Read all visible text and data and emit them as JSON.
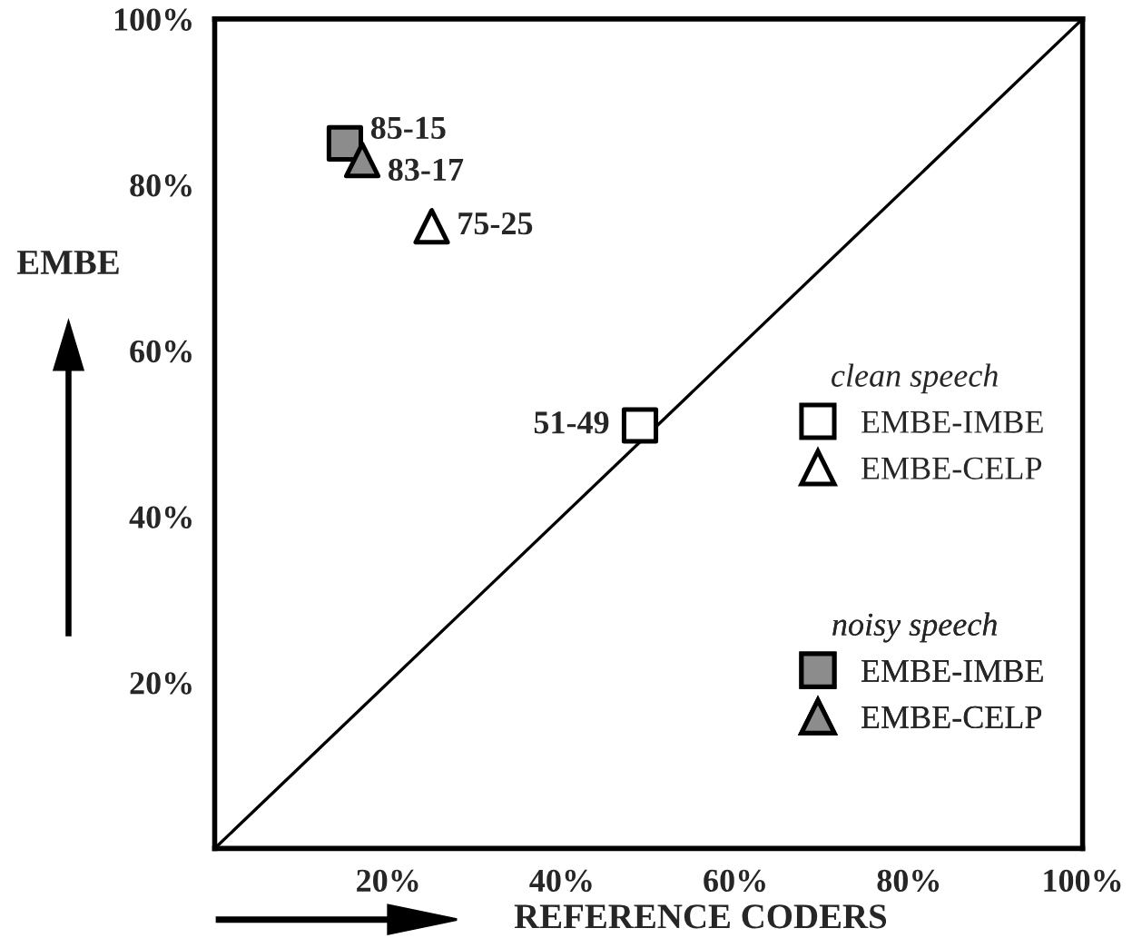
{
  "chart_data": {
    "type": "scatter",
    "xlabel": "REFERENCE CODERS",
    "ylabel": "EMBE",
    "xlim": [
      0,
      100
    ],
    "ylim": [
      0,
      100
    ],
    "xticks": [
      {
        "value": 20,
        "label": "20%"
      },
      {
        "value": 40,
        "label": "40%"
      },
      {
        "value": 60,
        "label": "60%"
      },
      {
        "value": 80,
        "label": "80%"
      },
      {
        "value": 100,
        "label": "100%"
      }
    ],
    "yticks": [
      {
        "value": 20,
        "label": "20%"
      },
      {
        "value": 40,
        "label": "40%"
      },
      {
        "value": 60,
        "label": "60%"
      },
      {
        "value": 80,
        "label": "80%"
      },
      {
        "value": 100,
        "label": "100%"
      }
    ],
    "annotations": [
      "clean speech",
      "noisy speech"
    ],
    "legend": "right",
    "grid": false,
    "series": [
      {
        "name": "EMBE-IMBE",
        "color": "#ffffff",
        "marker": "square",
        "x": [
          49
        ],
        "values": [
          51
        ],
        "value_labels": [
          "51-49"
        ]
      },
      {
        "name": "EMBE-CELP",
        "color": "#ffffff",
        "marker": "triangle",
        "x": [
          25
        ],
        "values": [
          75
        ],
        "value_labels": [
          "75-25"
        ]
      },
      {
        "name": "EMBE-IMBE",
        "color": "#8c8c8c",
        "marker": "square",
        "x": [
          15
        ],
        "values": [
          85
        ],
        "value_labels": [
          "85-15"
        ]
      },
      {
        "name": "EMBE-CELP",
        "color": "#8c8c8c",
        "marker": "triangle",
        "x": [
          17
        ],
        "values": [
          83
        ],
        "value_labels": [
          "83-17"
        ]
      },
      {
        "type": "line",
        "color": "#000000",
        "marker": "none",
        "x": [
          0,
          100
        ],
        "values": [
          0,
          100
        ]
      }
    ]
  }
}
